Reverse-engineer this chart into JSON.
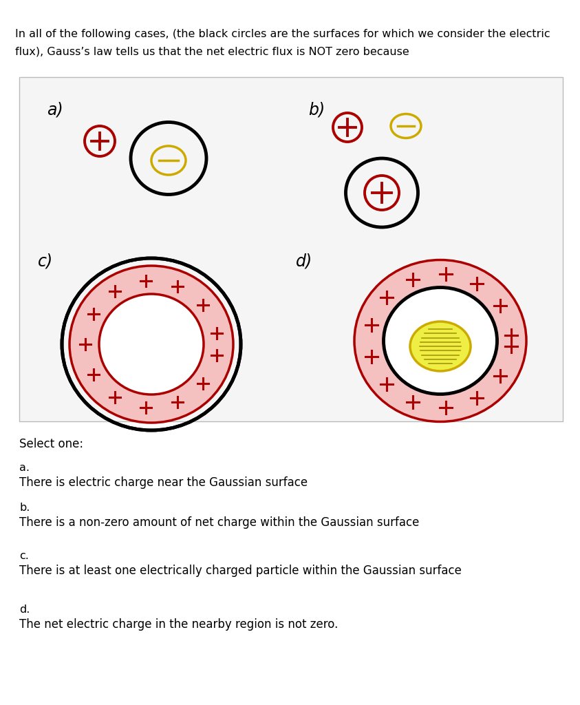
{
  "title_line1": "In all of the following cases, (the black circles are the surfaces for which we consider the electric",
  "title_line2": "flux), Gauss’s law tells us that the net electric flux is NOT zero because",
  "bg_color": "#f5f5f5",
  "select_one": "Select one:",
  "options": [
    {
      "label": "a.",
      "text": "There is electric charge near the Gaussian surface"
    },
    {
      "label": "b.",
      "text": "There is a non-zero amount of net charge within the Gaussian surface"
    },
    {
      "label": "c.",
      "text": "There is at least one electrically charged particle within the Gaussian surface"
    },
    {
      "label": "d.",
      "text": "The net electric charge in the nearby region is not zero."
    }
  ],
  "red": "#aa0000",
  "yellow": "#ccaa00",
  "yellow_fill": "#eeee44",
  "pink_fill": "#f5c0c0",
  "black": "#000000"
}
